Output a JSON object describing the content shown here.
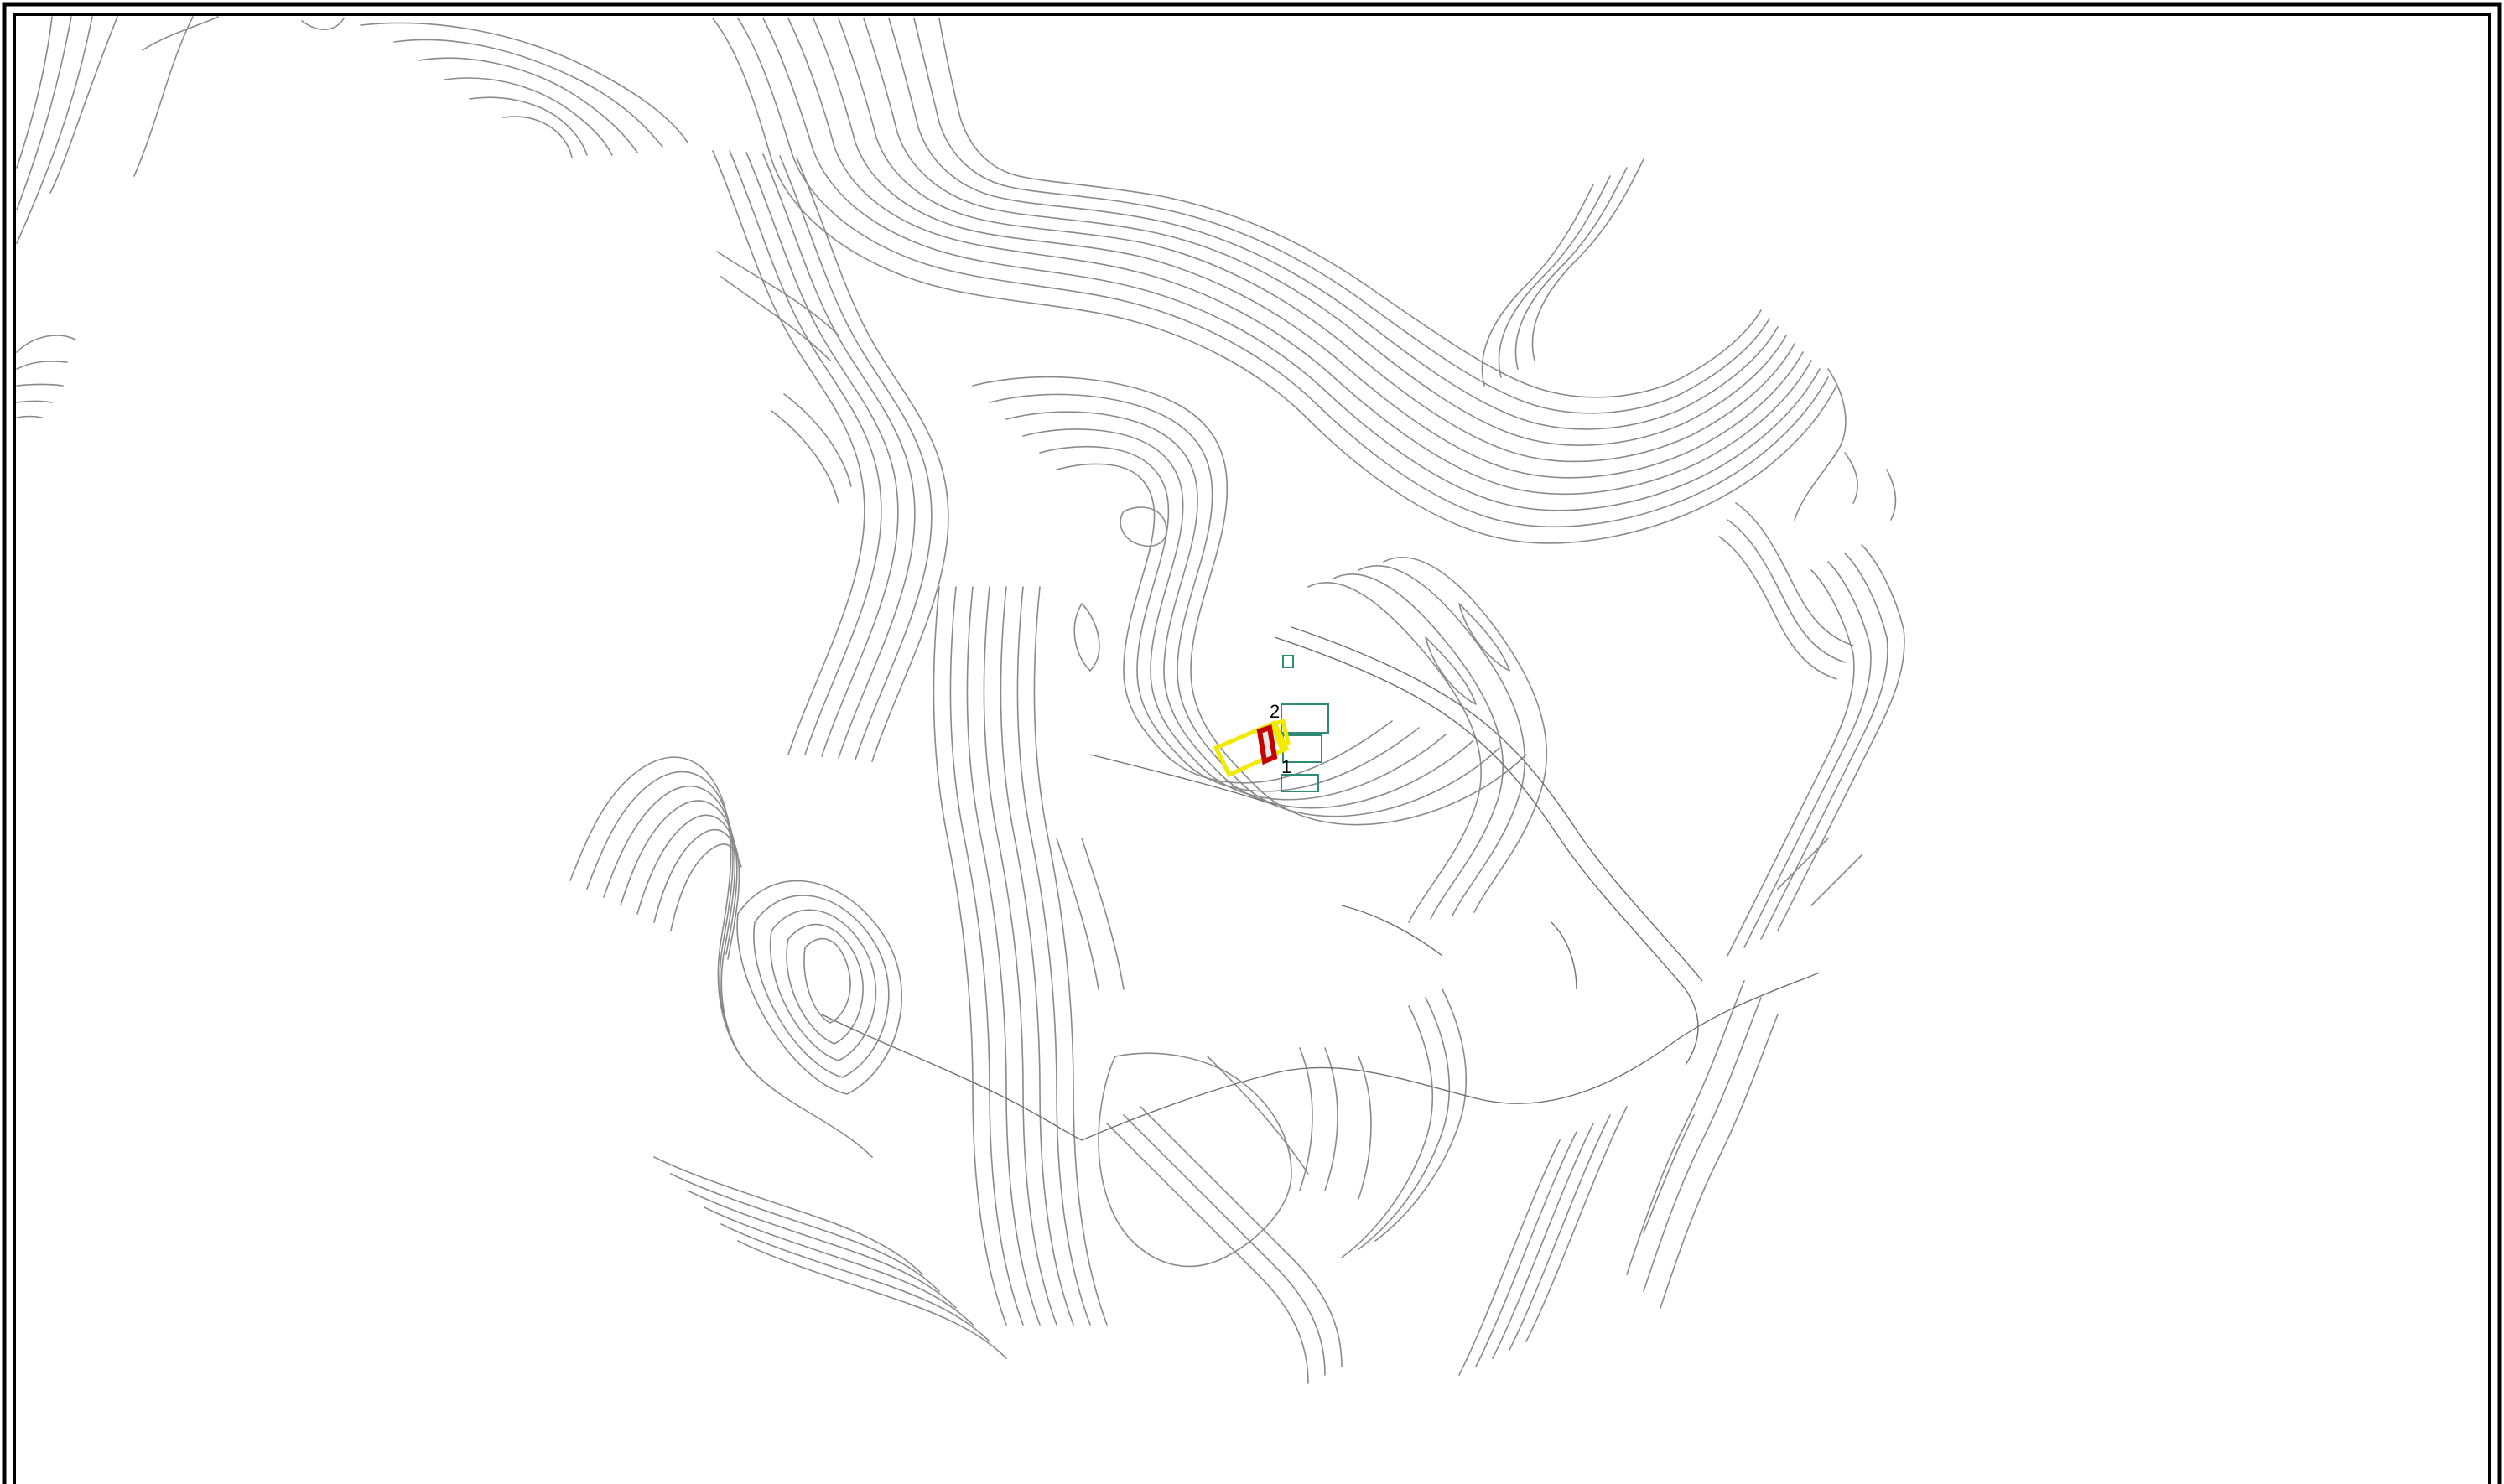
{
  "map": {
    "colors": {
      "background": "#ffffff",
      "frame": "#000000",
      "contour": "#8a8a8a",
      "building": "#2e8b74",
      "highlight_outline": "#f2ea00",
      "selection_outline": "#c40000"
    },
    "point_labels": {
      "point_2": "2",
      "point_1": "1"
    }
  }
}
